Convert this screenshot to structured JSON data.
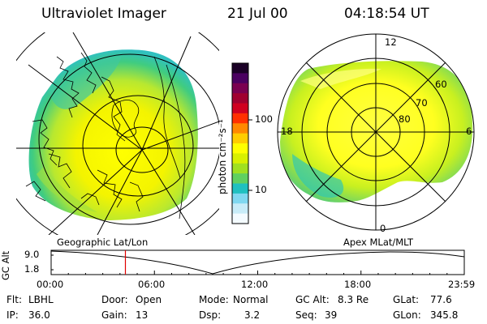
{
  "header": {
    "instrument": "Ultraviolet Imager",
    "date": "21 Jul 00",
    "time": "04:18:54 UT"
  },
  "colorbar": {
    "unit_label": "photon cm⁻²s⁻¹",
    "ticks": [
      "100",
      "10"
    ],
    "scale": "log",
    "colors": [
      "#1a0026",
      "#4a0060",
      "#7a0050",
      "#a00030",
      "#d00020",
      "#ff3000",
      "#ff8800",
      "#ffcc00",
      "#ffff00",
      "#d8f000",
      "#a0e020",
      "#60d060",
      "#20c0c0",
      "#80d8f0",
      "#c8ecf8",
      "#f4fbff"
    ]
  },
  "left_panel": {
    "caption": "Geographic Lat/Lon"
  },
  "right_panel": {
    "caption": "Apex MLat/MLT",
    "mlt_labels": {
      "top": "12",
      "bottom": "0",
      "left": "18",
      "right": "6"
    },
    "mlat_labels": [
      "60",
      "70",
      "80"
    ]
  },
  "timeline": {
    "ylabel": "GC Alt",
    "yticks": [
      "9.0",
      "1.8"
    ],
    "xticks": [
      "00:00",
      "06:00",
      "12:00",
      "18:00",
      "23:59"
    ],
    "current_time_hours": 4.3155,
    "marker_color": "#e00000"
  },
  "info": {
    "filter_label": "Flt:",
    "filter_value": "LBHL",
    "door_label": "Door:",
    "door_value": "Open",
    "mode_label": "Mode:",
    "mode_value": "Normal",
    "gcalt_label": "GC Alt:",
    "gcalt_value": "8.3 Re",
    "glat_label": "GLat:",
    "glat_value": "77.6",
    "ip_label": "IP:",
    "ip_value": "36.0",
    "gain_label": "Gain:",
    "gain_value": "13",
    "dsp_label": "Dsp:",
    "dsp_value": "3.2",
    "seq_label": "Seq:",
    "seq_value": "39",
    "glon_label": "GLon:",
    "glon_value": "345.8"
  }
}
